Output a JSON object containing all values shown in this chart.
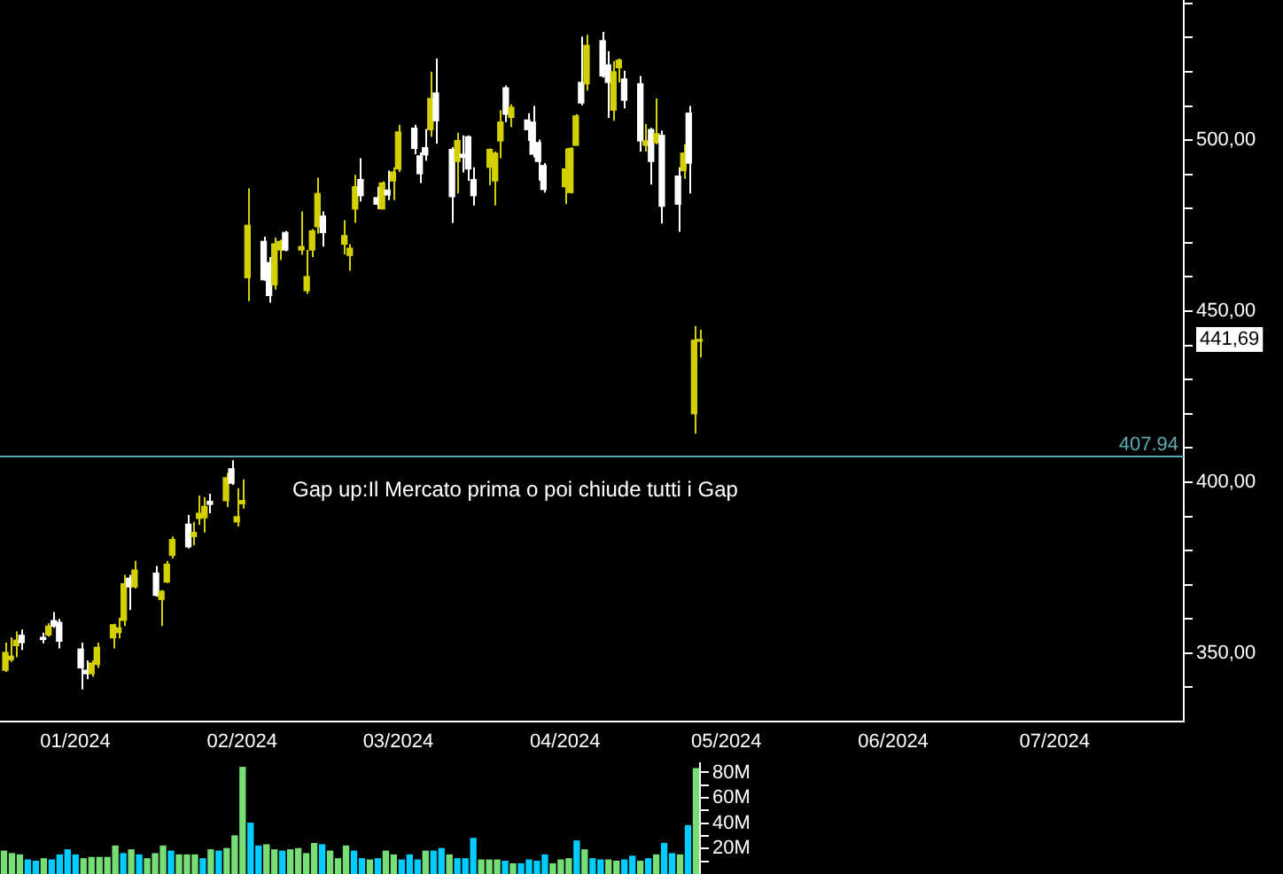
{
  "chart_data": [
    {
      "type": "candlestick",
      "x": [
        "2023-12-19",
        "2023-12-20",
        "2023-12-21",
        "2023-12-22",
        "2023-12-26",
        "2023-12-27",
        "2023-12-28",
        "2023-12-29",
        "2024-01-02",
        "2024-01-03",
        "2024-01-04",
        "2024-01-05",
        "2024-01-08",
        "2024-01-09",
        "2024-01-10",
        "2024-01-11",
        "2024-01-12",
        "2024-01-16",
        "2024-01-17",
        "2024-01-18",
        "2024-01-19",
        "2024-01-22",
        "2024-01-23",
        "2024-01-24",
        "2024-01-25",
        "2024-01-26",
        "2024-01-29",
        "2024-01-30",
        "2024-01-31",
        "2024-02-01",
        "2024-02-02",
        "2024-02-05",
        "2024-02-06",
        "2024-02-07",
        "2024-02-08",
        "2024-02-09",
        "2024-02-12",
        "2024-02-13",
        "2024-02-14",
        "2024-02-15",
        "2024-02-16",
        "2024-02-20",
        "2024-02-21",
        "2024-02-22",
        "2024-02-23",
        "2024-02-26",
        "2024-02-27",
        "2024-02-28",
        "2024-02-29",
        "2024-03-01",
        "2024-03-04",
        "2024-03-05",
        "2024-03-06",
        "2024-03-07",
        "2024-03-08",
        "2024-03-11",
        "2024-03-12",
        "2024-03-13",
        "2024-03-14",
        "2024-03-15",
        "2024-03-18",
        "2024-03-19",
        "2024-03-20",
        "2024-03-21",
        "2024-03-22",
        "2024-03-25",
        "2024-03-26",
        "2024-03-27",
        "2024-03-28",
        "2024-04-01",
        "2024-04-02",
        "2024-04-03",
        "2024-04-04",
        "2024-04-05",
        "2024-04-08",
        "2024-04-09",
        "2024-04-10",
        "2024-04-11",
        "2024-04-12",
        "2024-04-15",
        "2024-04-16",
        "2024-04-17",
        "2024-04-18",
        "2024-04-19",
        "2024-04-22",
        "2024-04-23",
        "2024-04-24",
        "2024-04-25",
        "2024-04-26"
      ],
      "ohlc": [
        [
          345.0,
          353.1,
          344.5,
          350.2
        ],
        [
          348.1,
          354.6,
          347.4,
          349.1
        ],
        [
          352.2,
          356.4,
          348.8,
          353.8
        ],
        [
          355.2,
          356.9,
          350.9,
          353.1
        ],
        [
          354.6,
          356.0,
          352.9,
          354.0
        ],
        [
          355.3,
          358.8,
          354.8,
          357.9
        ],
        [
          359.5,
          362.0,
          357.4,
          357.9
        ],
        [
          359.0,
          360.0,
          351.4,
          353.5
        ],
        [
          351.2,
          353.1,
          339.4,
          345.7
        ],
        [
          345.0,
          347.9,
          342.4,
          344.0
        ],
        [
          344.0,
          347.9,
          343.1,
          347.1
        ],
        [
          346.7,
          353.1,
          345.7,
          351.7
        ],
        [
          354.5,
          358.6,
          351.4,
          358.3
        ],
        [
          356.0,
          360.3,
          354.3,
          357.4
        ],
        [
          359.6,
          372.9,
          357.9,
          370.3
        ],
        [
          371.9,
          372.9,
          362.6,
          369.4
        ],
        [
          369.4,
          377.0,
          368.9,
          374.3
        ],
        [
          373.4,
          375.5,
          366.5,
          366.9
        ],
        [
          365.7,
          368.4,
          357.9,
          368.1
        ],
        [
          370.8,
          377.0,
          370.5,
          376.0
        ],
        [
          378.6,
          384.1,
          377.7,
          383.2
        ],
        [
          387.7,
          390.4,
          380.6,
          381.1
        ],
        [
          384.1,
          388.4,
          381.5,
          385.3
        ],
        [
          389.4,
          396.1,
          387.5,
          390.9
        ],
        [
          389.6,
          395.6,
          385.3,
          392.9
        ],
        [
          394.4,
          396.6,
          390.9,
          393.5
        ],
        [
          394.6,
          402.7,
          392.7,
          401.3
        ],
        [
          403.9,
          406.4,
          399.2,
          399.7
        ],
        [
          388.4,
          398.2,
          387.0,
          389.9
        ],
        [
          393.7,
          400.8,
          392.3,
          394.6
        ],
        [
          459.8,
          485.9,
          452.9,
          475.1
        ],
        [
          470.4,
          471.8,
          458.9,
          459.2
        ],
        [
          464.2,
          465.8,
          452.5,
          454.6
        ],
        [
          457.7,
          471.5,
          456.3,
          469.7
        ],
        [
          467.9,
          470.9,
          464.9,
          470.4
        ],
        [
          473.0,
          473.5,
          467.5,
          467.9
        ],
        [
          467.9,
          479.2,
          466.5,
          468.9
        ],
        [
          456.0,
          467.9,
          455.1,
          460.1
        ],
        [
          467.9,
          474.0,
          465.8,
          473.5
        ],
        [
          474.7,
          489.0,
          472.7,
          484.4
        ],
        [
          477.8,
          479.2,
          468.9,
          473.0
        ],
        [
          469.6,
          476.6,
          466.6,
          472.1
        ],
        [
          466.3,
          469.6,
          461.8,
          468.4
        ],
        [
          479.9,
          489.9,
          475.8,
          486.4
        ],
        [
          488.5,
          494.7,
          482.1,
          483.8
        ],
        [
          483.2,
          486.4,
          479.9,
          481.3
        ],
        [
          479.9,
          488.0,
          479.9,
          487.5
        ],
        [
          485.4,
          491.1,
          482.5,
          484.0
        ],
        [
          488.1,
          492.1,
          482.5,
          490.7
        ],
        [
          491.6,
          504.5,
          490.7,
          502.4
        ],
        [
          503.5,
          504.5,
          495.9,
          497.6
        ],
        [
          495.4,
          496.4,
          487.5,
          490.2
        ],
        [
          497.8,
          503.3,
          494.0,
          495.7
        ],
        [
          503.1,
          520.0,
          501.0,
          512.2
        ],
        [
          513.8,
          523.9,
          499.0,
          505.7
        ],
        [
          497.3,
          498.0,
          475.8,
          483.5
        ],
        [
          493.8,
          502.2,
          484.4,
          499.9
        ],
        [
          495.9,
          501.4,
          490.6,
          495.0
        ],
        [
          501.0,
          501.4,
          488.1,
          491.6
        ],
        [
          488.5,
          492.1,
          480.9,
          483.8
        ],
        [
          492.1,
          497.6,
          486.8,
          497.3
        ],
        [
          488.1,
          496.7,
          480.9,
          496.2
        ],
        [
          499.8,
          508.8,
          494.7,
          505.3
        ],
        [
          515.3,
          516.0,
          505.3,
          507.6
        ],
        [
          506.7,
          510.5,
          503.9,
          509.6
        ],
        [
          505.9,
          507.9,
          499.8,
          503.1
        ],
        [
          505.3,
          510.0,
          494.9,
          495.9
        ],
        [
          499.3,
          500.2,
          488.2,
          493.8
        ],
        [
          492.6,
          493.3,
          484.7,
          485.6
        ],
        [
          486.4,
          497.6,
          481.3,
          491.6
        ],
        [
          484.7,
          497.9,
          484.4,
          497.6
        ],
        [
          498.5,
          507.6,
          498.5,
          507.1
        ],
        [
          516.9,
          530.3,
          510.2,
          510.9
        ],
        [
          516.5,
          530.8,
          514.5,
          527.7
        ],
        [
          529.1,
          531.7,
          518.3,
          518.8
        ],
        [
          522.0,
          526.0,
          506.5,
          516.9
        ],
        [
          508.8,
          523.1,
          505.7,
          520.0
        ],
        [
          521.2,
          523.9,
          516.9,
          523.4
        ],
        [
          517.9,
          520.3,
          509.3,
          511.7
        ],
        [
          516.5,
          518.8,
          496.7,
          499.8
        ],
        [
          498.5,
          504.8,
          496.7,
          499.8
        ],
        [
          503.1,
          503.6,
          487.0,
          493.8
        ],
        [
          499.3,
          512.2,
          498.8,
          501.9
        ],
        [
          501.4,
          502.8,
          475.6,
          480.7
        ],
        [
          489.5,
          492.1,
          473.2,
          481.3
        ],
        [
          491.1,
          498.8,
          488.7,
          496.2
        ],
        [
          507.9,
          510.0,
          484.4,
          493.3
        ],
        [
          420.0,
          445.7,
          414.2,
          441.5
        ],
        [
          441.2,
          444.6,
          436.5,
          441.69
        ]
      ],
      "colors": [
        "#d4d000",
        "#d4d000",
        "#d4d000",
        "#ffffff",
        "#ffffff",
        "#d4d000",
        "#ffffff",
        "#ffffff",
        "#ffffff",
        "#ffffff",
        "#d4d000",
        "#d4d000",
        "#d4d000",
        "#d4d000",
        "#d4d000",
        "#ffffff",
        "#d4d000",
        "#ffffff",
        "#d4d000",
        "#d4d000",
        "#d4d000",
        "#ffffff",
        "#d4d000",
        "#d4d000",
        "#d4d000",
        "#ffffff",
        "#d4d000",
        "#ffffff",
        "#d4d000",
        "#d4d000",
        "#d4d000",
        "#ffffff",
        "#ffffff",
        "#d4d000",
        "#d4d000",
        "#ffffff",
        "#d4d000",
        "#d4d000",
        "#d4d000",
        "#d4d000",
        "#ffffff",
        "#d4d000",
        "#d4d000",
        "#d4d000",
        "#ffffff",
        "#ffffff",
        "#d4d000",
        "#ffffff",
        "#d4d000",
        "#d4d000",
        "#ffffff",
        "#ffffff",
        "#ffffff",
        "#d4d000",
        "#ffffff",
        "#ffffff",
        "#d4d000",
        "#ffffff",
        "#ffffff",
        "#ffffff",
        "#d4d000",
        "#d4d000",
        "#d4d000",
        "#ffffff",
        "#d4d000",
        "#ffffff",
        "#ffffff",
        "#ffffff",
        "#ffffff",
        "#d4d000",
        "#d4d000",
        "#d4d000",
        "#ffffff",
        "#d4d000",
        "#ffffff",
        "#ffffff",
        "#d4d000",
        "#d4d000",
        "#ffffff",
        "#ffffff",
        "#d4d000",
        "#ffffff",
        "#d4d000",
        "#ffffff",
        "#ffffff",
        "#d4d000",
        "#ffffff",
        "#d4d000",
        "#d4d000"
      ],
      "xlim": [
        "2023-12-18",
        "2024-07-25"
      ],
      "xticks": [
        {
          "value": "2024-01-01",
          "label": "01/2024"
        },
        {
          "value": "2024-02-01",
          "label": "02/2024"
        },
        {
          "value": "2024-03-01",
          "label": "03/2024"
        },
        {
          "value": "2024-04-01",
          "label": "04/2024"
        },
        {
          "value": "2024-05-01",
          "label": "05/2024"
        },
        {
          "value": "2024-06-01",
          "label": "06/2024"
        },
        {
          "value": "2024-07-01",
          "label": "07/2024"
        }
      ],
      "ylim": [
        330,
        541
      ],
      "yticks": [
        {
          "value": 340,
          "label": null
        },
        {
          "value": 350,
          "label": "350,00"
        },
        {
          "value": 360,
          "label": null
        },
        {
          "value": 370,
          "label": null
        },
        {
          "value": 380,
          "label": null
        },
        {
          "value": 390,
          "label": null
        },
        {
          "value": 400,
          "label": "400,00"
        },
        {
          "value": 410,
          "label": null
        },
        {
          "value": 420,
          "label": null
        },
        {
          "value": 430,
          "label": null
        },
        {
          "value": 440,
          "label": null
        },
        {
          "value": 450,
          "label": "450,00"
        },
        {
          "value": 460,
          "label": null
        },
        {
          "value": 470,
          "label": null
        },
        {
          "value": 480,
          "label": null
        },
        {
          "value": 490,
          "label": null
        },
        {
          "value": 500,
          "label": "500,00"
        },
        {
          "value": 510,
          "label": null
        },
        {
          "value": 520,
          "label": null
        },
        {
          "value": 530,
          "label": null
        },
        {
          "value": 540,
          "label": null
        }
      ],
      "ref_lines": [
        {
          "axis": "y",
          "value": 407.94,
          "label": "407.94",
          "color": "#5aa9b3"
        }
      ],
      "annotations": [
        "Gap up:Il Mercato prima o poi chiude tutti i Gap",
        "441,69"
      ]
    },
    {
      "type": "bar",
      "categories": [
        null,
        null,
        null,
        null,
        null,
        null,
        null,
        null,
        null,
        null,
        null,
        null,
        null,
        null,
        null,
        null,
        null,
        null,
        null,
        null,
        null,
        null,
        null,
        null,
        null,
        null,
        null,
        null,
        null,
        null,
        null,
        null,
        null,
        null,
        null,
        null,
        null,
        null,
        null,
        null,
        null,
        null,
        null,
        null,
        null,
        null,
        null,
        null,
        null,
        null,
        null,
        null,
        null,
        null,
        null,
        null,
        null,
        null,
        null,
        null,
        null,
        null,
        null,
        null,
        null,
        null,
        null,
        null,
        null,
        null,
        null,
        null,
        null,
        null,
        null,
        null,
        null,
        null,
        null,
        null,
        null,
        null,
        null,
        null,
        null,
        null,
        null,
        null
      ],
      "values": [
        18,
        16,
        15,
        11,
        10,
        12,
        11,
        15,
        19,
        15,
        12,
        13,
        13,
        13,
        22,
        16,
        19,
        15,
        12,
        16,
        22,
        18,
        15,
        15,
        15,
        12,
        19,
        18,
        20,
        30,
        84,
        40,
        22,
        23,
        19,
        18,
        19,
        20,
        16,
        24,
        23,
        18,
        12,
        22,
        18,
        12,
        11,
        12,
        18,
        15,
        11,
        15,
        11,
        18,
        18,
        20,
        15,
        12,
        12,
        28,
        11,
        11,
        11,
        10,
        8,
        8,
        11,
        10,
        15,
        8,
        11,
        12,
        26,
        19,
        12,
        11,
        11,
        10,
        11,
        14,
        10,
        12,
        15,
        24,
        16,
        15,
        38,
        83
      ],
      "colors": [
        "#77dd77",
        "#77dd77",
        "#77dd77",
        "#00ccff",
        "#00ccff",
        "#77dd77",
        "#00ccff",
        "#00ccff",
        "#00ccff",
        "#00ccff",
        "#77dd77",
        "#77dd77",
        "#77dd77",
        "#77dd77",
        "#77dd77",
        "#00ccff",
        "#77dd77",
        "#00ccff",
        "#77dd77",
        "#77dd77",
        "#77dd77",
        "#00ccff",
        "#77dd77",
        "#77dd77",
        "#77dd77",
        "#00ccff",
        "#77dd77",
        "#00ccff",
        "#77dd77",
        "#77dd77",
        "#77dd77",
        "#00ccff",
        "#00ccff",
        "#77dd77",
        "#77dd77",
        "#00ccff",
        "#77dd77",
        "#77dd77",
        "#77dd77",
        "#77dd77",
        "#00ccff",
        "#77dd77",
        "#77dd77",
        "#77dd77",
        "#00ccff",
        "#00ccff",
        "#77dd77",
        "#00ccff",
        "#77dd77",
        "#77dd77",
        "#00ccff",
        "#00ccff",
        "#00ccff",
        "#77dd77",
        "#00ccff",
        "#00ccff",
        "#77dd77",
        "#00ccff",
        "#00ccff",
        "#00ccff",
        "#77dd77",
        "#77dd77",
        "#77dd77",
        "#00ccff",
        "#77dd77",
        "#00ccff",
        "#00ccff",
        "#00ccff",
        "#00ccff",
        "#77dd77",
        "#77dd77",
        "#77dd77",
        "#00ccff",
        "#77dd77",
        "#00ccff",
        "#00ccff",
        "#77dd77",
        "#77dd77",
        "#00ccff",
        "#00ccff",
        "#77dd77",
        "#00ccff",
        "#77dd77",
        "#00ccff",
        "#00ccff",
        "#77dd77",
        "#00ccff",
        "#77dd77"
      ],
      "ylim": [
        0,
        88
      ],
      "yticks": [
        {
          "value": 10,
          "label": null
        },
        {
          "value": 20,
          "label": "20M"
        },
        {
          "value": 30,
          "label": null
        },
        {
          "value": 40,
          "label": "40M"
        },
        {
          "value": 50,
          "label": null
        },
        {
          "value": 60,
          "label": "60M"
        },
        {
          "value": 70,
          "label": null
        },
        {
          "value": 80,
          "label": "80M"
        }
      ],
      "tick_labels": "y"
    }
  ]
}
